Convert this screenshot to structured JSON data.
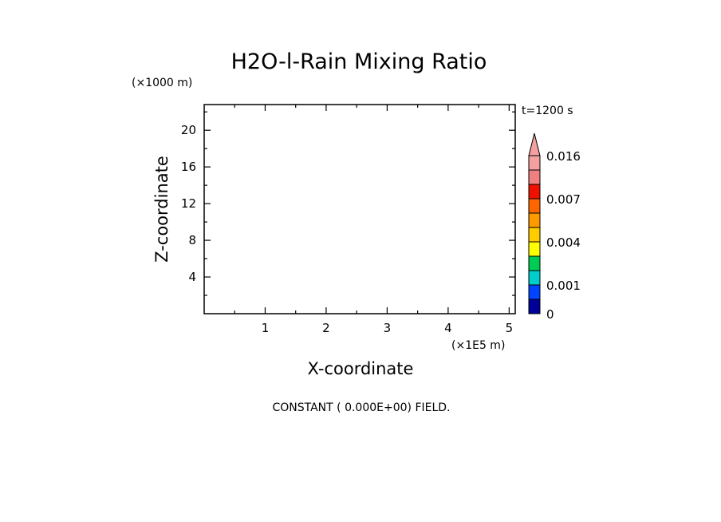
{
  "chart_data": {
    "type": "heatmap",
    "title": "H2O-l-Rain Mixing Ratio",
    "xlabel": "X-coordinate",
    "ylabel": "Z-coordinate",
    "x_multiplier": "(×1E5 m)",
    "y_multiplier": "(×1000 m)",
    "time_label": "t=1200 s",
    "note": "CONSTANT ( 0.000E+00) FIELD.",
    "xlim": [
      0,
      5.1
    ],
    "ylim": [
      0,
      22.8
    ],
    "x_ticks": [
      1,
      2,
      3,
      4,
      5
    ],
    "y_ticks": [
      4,
      8,
      12,
      16,
      20
    ],
    "field_value": 0,
    "colorbar": {
      "levels": [
        0,
        0.0005,
        0.001,
        0.002,
        0.003,
        0.004,
        0.005,
        0.006,
        0.007,
        0.01,
        0.013,
        0.016
      ],
      "colors": [
        "#000099",
        "#0044ff",
        "#00cccc",
        "#00cc55",
        "#ffff00",
        "#ffcc00",
        "#ff9900",
        "#ff6600",
        "#ee1100",
        "#f08080",
        "#f4a0a0"
      ],
      "labels": [
        {
          "value": 0,
          "text": "0"
        },
        {
          "value": 0.001,
          "text": "0.001"
        },
        {
          "value": 0.004,
          "text": "0.004"
        },
        {
          "value": 0.007,
          "text": "0.007"
        },
        {
          "value": 0.016,
          "text": "0.016"
        }
      ]
    }
  }
}
